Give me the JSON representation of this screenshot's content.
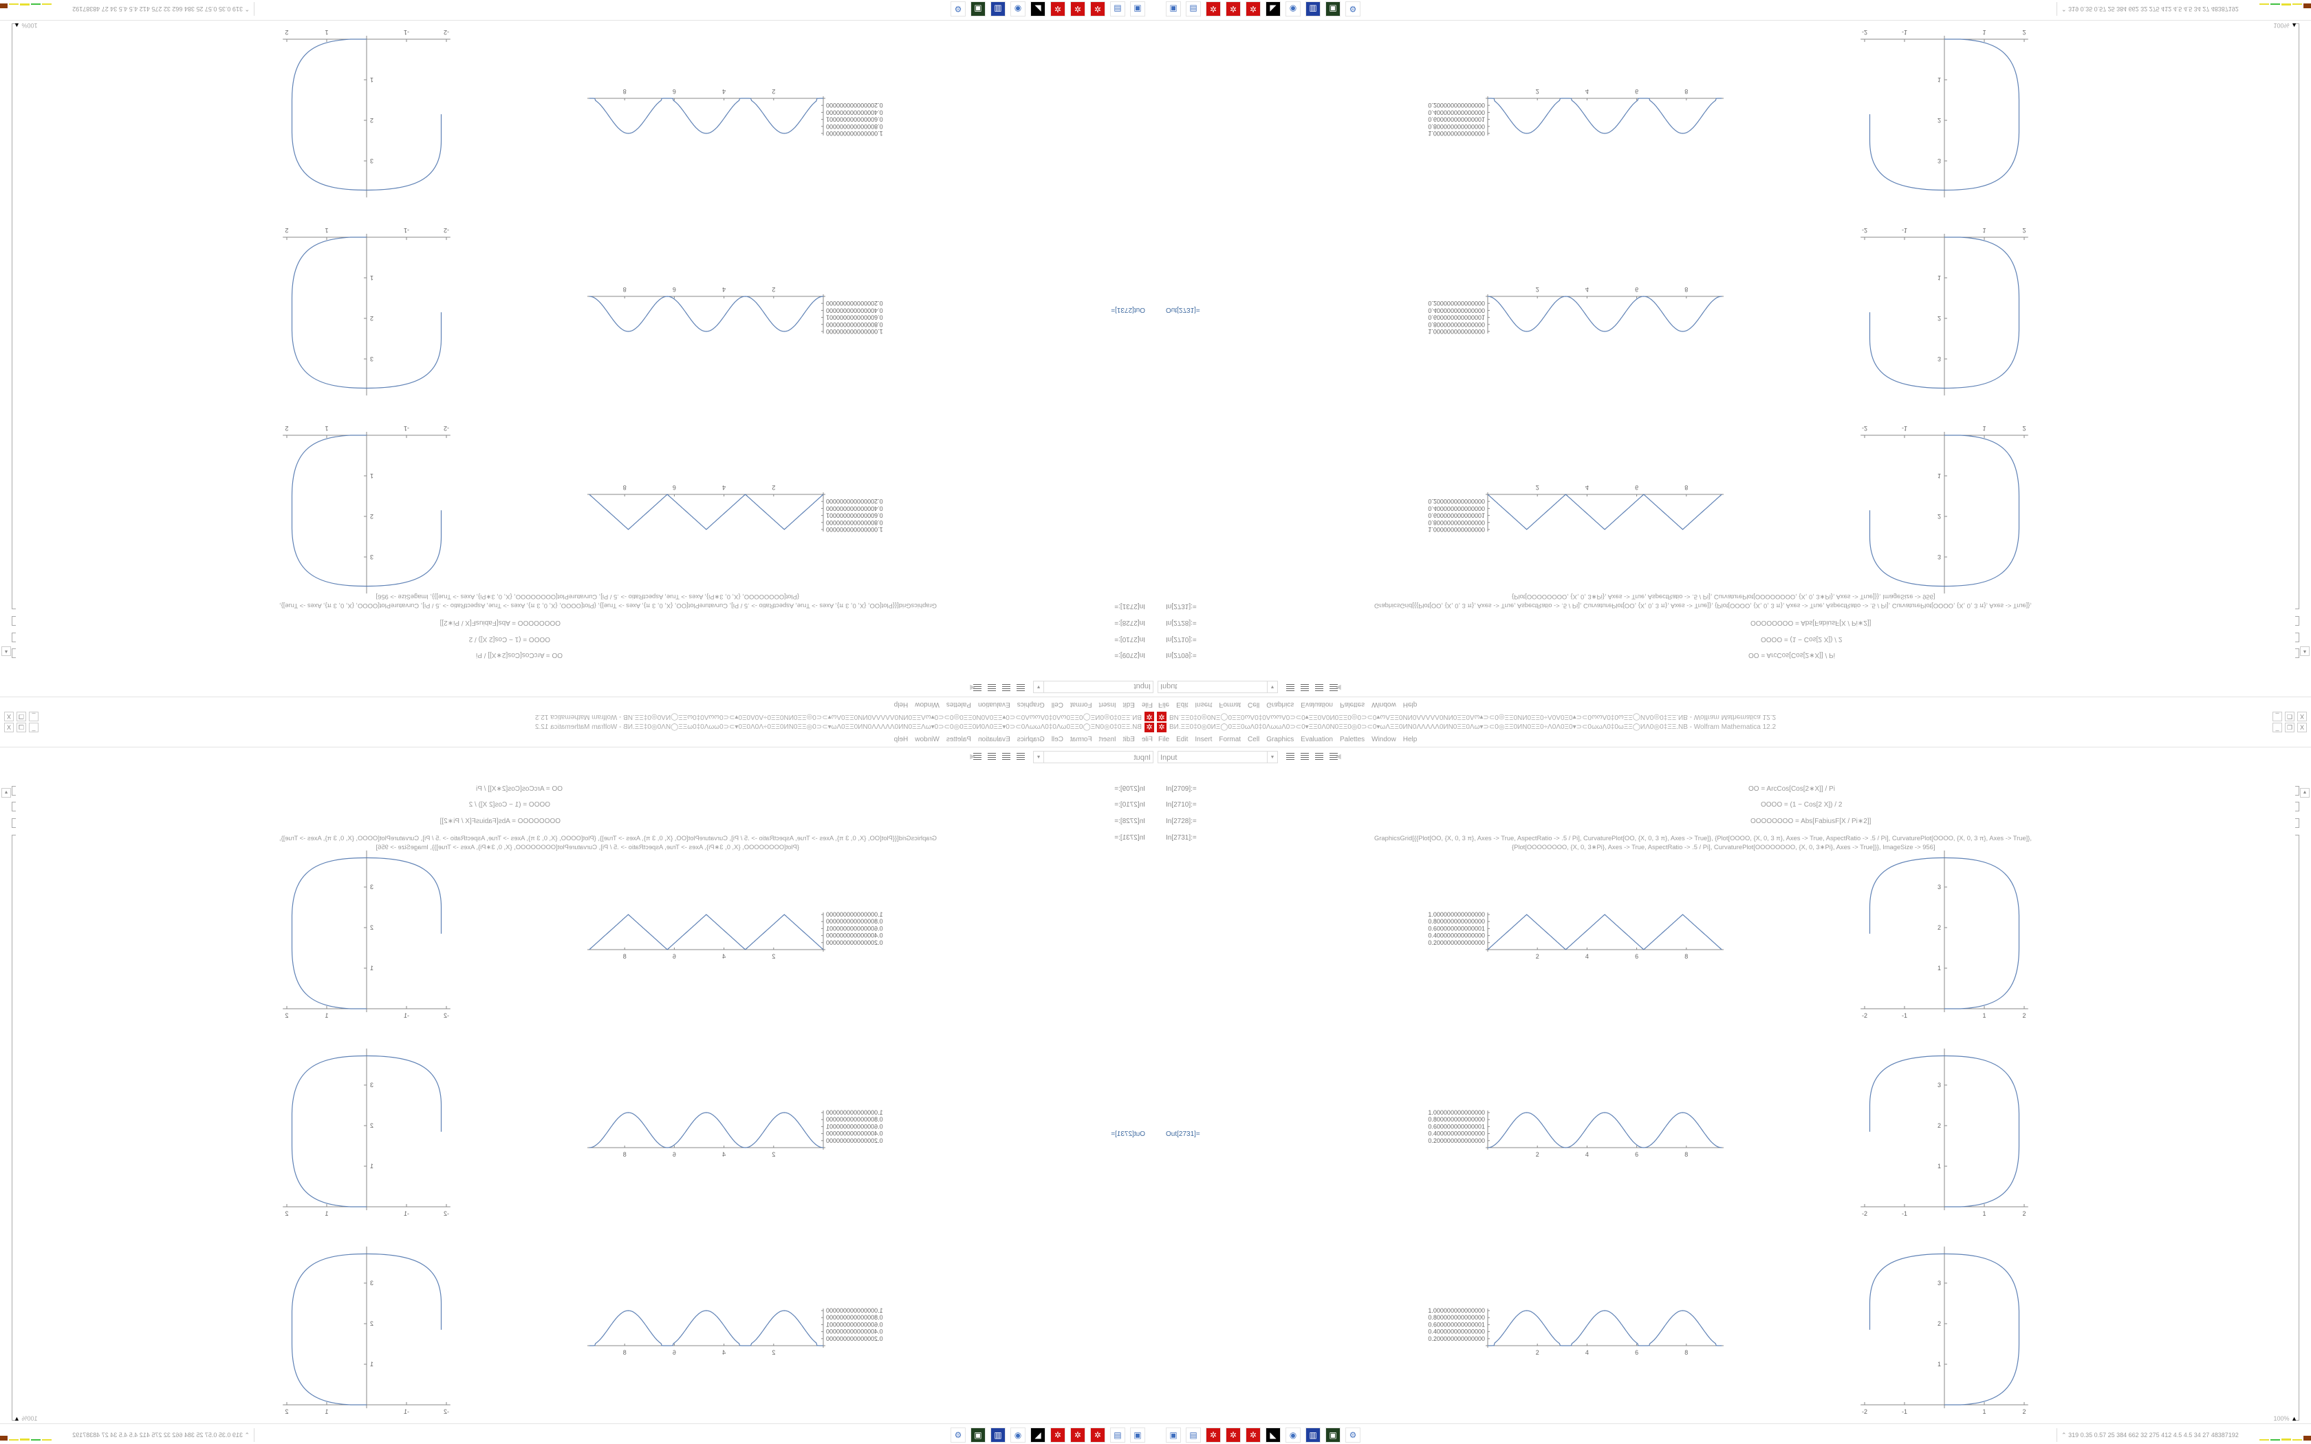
{
  "window": {
    "title": "BИ.ΞΞ0‡0◎0ИΞ◯0ΞΞ0ωΛ0‡0ΛωωΛ0⊃⊂0▾ΞΞ0Λ0Ν0ΞΞ0◎0⊃⊂0▾ωΛΞΞ0ИΝ0ΛΛΛΛΛ0ИΝ0ΞΞ0Λω▾⊃⊂0◎ΞΞ0ИΝ0ΞΞ0÷Λ0Λ0Ξ0▾⊃⊂0ωωΛ0‡0ωΞΞ◯ИΛ0◎0‡ΞΞ.NB - Wolfram Mathematica 12.2",
    "controls": [
      "_",
      "❐",
      "X"
    ]
  },
  "menu": [
    "File",
    "Edit",
    "Insert",
    "Format",
    "Cell",
    "Graphics",
    "Evaluation",
    "Palettes",
    "Window",
    "Help"
  ],
  "toolbar": {
    "style": "Input"
  },
  "cells": [
    {
      "label": "In[2709]:=",
      "code": "OO = ArcCos[Cos[2∗X]] / Pi"
    },
    {
      "label": "In[2710]:=",
      "code": "OOOO = (1 − Cos[2 X]) / 2"
    },
    {
      "label": "In[2728]:=",
      "code": "OOOOOOOO = Abs[FabiusF[X / Pi∗2]]"
    },
    {
      "label": "In[2731]:=",
      "code": "GraphicsGrid[{{Plot[OO, {X, 0, 3 π}, Axes -> True, AspectRatio -> .5 / Pi], CurvaturePlot[OO, {X, 0, 3 π}, Axes -> True]}, {Plot[OOOO, {X, 0, 3 π}, Axes -> True, AspectRatio -> .5 / Pi], CurvaturePlot[OOOO, {X, 0, 3 π}, Axes -> True]},",
      "code2": "{Plot[OOOOOOOO, {X, 0, 3∗Pi}, Axes -> True, AspectRatio -> .5 / Pi], CurvaturePlot[OOOOOOOO, {X, 0, 3∗Pi}, Axes -> True]}}, ImageSize -> 956]"
    }
  ],
  "output_label": "Out[2731]=",
  "zoom": "100%",
  "chart_data": [
    {
      "type": "line",
      "function": "OO",
      "shape": "triangle",
      "xlim": [
        0,
        9.42
      ],
      "ylim": [
        0,
        1
      ],
      "xticks": [
        "2",
        "4",
        "6",
        "8"
      ],
      "yticks": [
        "0.200000000000000",
        "0.400000000000000",
        "0.600000000000001",
        "0.800000000000000",
        "1.000000000000000"
      ]
    },
    {
      "type": "line",
      "function": "OOOO",
      "shape": "sin2",
      "xlim": [
        0,
        9.42
      ],
      "ylim": [
        0,
        1
      ],
      "xticks": [
        "2",
        "4",
        "6",
        "8"
      ],
      "yticks": [
        "0.200000000000000",
        "0.400000000000000",
        "0.600000000000001",
        "0.800000000000000",
        "1.000000000000000"
      ]
    },
    {
      "type": "line",
      "function": "OOOOOOOO",
      "shape": "fabius",
      "xlim": [
        0,
        9.42
      ],
      "ylim": [
        0,
        1
      ],
      "xticks": [
        "2",
        "4",
        "6",
        "8"
      ],
      "yticks": [
        "0.200000000000000",
        "0.400000000000000",
        "0.600000000000001",
        "0.800000000000000",
        "1.000000000000000"
      ]
    },
    {
      "type": "curvature",
      "xlim": [
        -2,
        2
      ],
      "ylim": [
        0,
        3.7
      ],
      "xticks": [
        "-2",
        "-1",
        "1",
        "2"
      ],
      "yticks": [
        "1",
        "2",
        "3"
      ]
    }
  ],
  "colors": {
    "curve": "#5e81b5",
    "axis": "#888888"
  },
  "taskbar": {
    "icons": [
      "window-icon",
      "calculator-icon",
      "mathematica-icon",
      "mathematica-icon",
      "mathematica-icon",
      "wolf-icon",
      "firefox-icon",
      "floppy-32-icon",
      "terminal-icon",
      "settings-monitor-icon"
    ],
    "glyphs": [
      "▣",
      "▤",
      "✲",
      "✲",
      "✲",
      "◣",
      "◉",
      "▥",
      "▣",
      "⚙"
    ],
    "stats": "319 0.35 0.57  25  384  662  32  275  412  4.5  4.5  34  27  48387192",
    "expand": "⌃"
  }
}
